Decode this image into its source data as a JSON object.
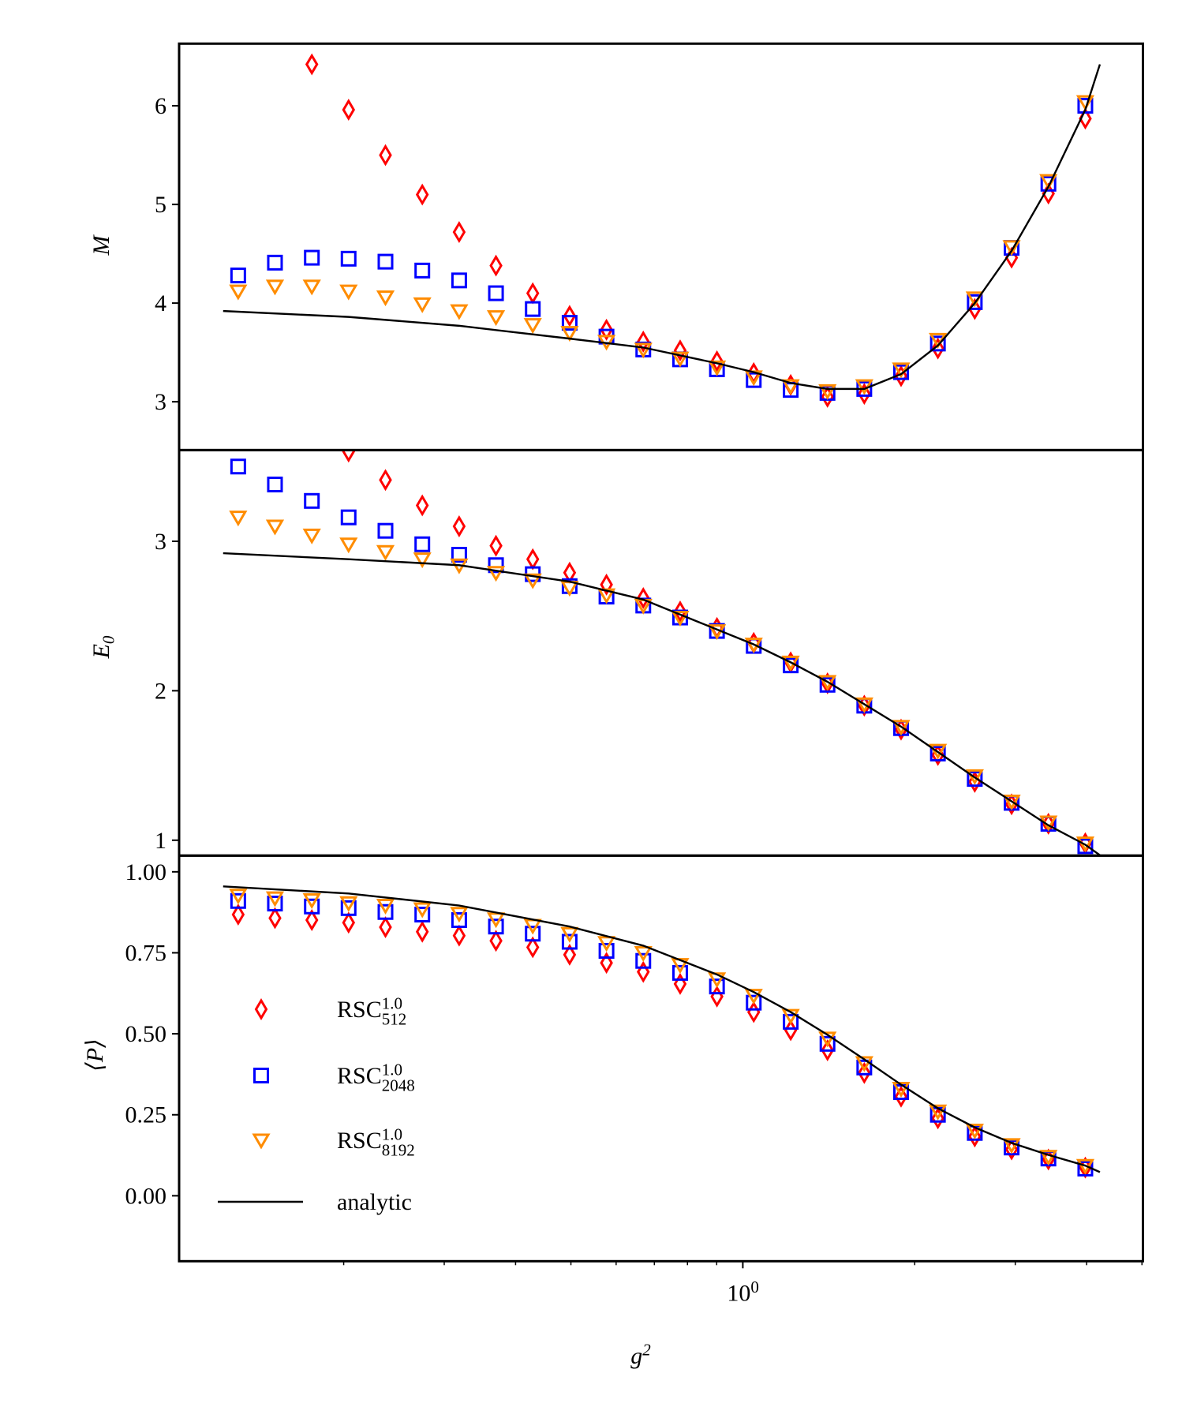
{
  "chart_data": [
    {
      "type": "scatter",
      "xscale": "log",
      "xlim": [
        0.103,
        5.02
      ],
      "ylim": [
        2.51,
        6.63
      ],
      "yticks": [
        3,
        4,
        5,
        6
      ],
      "ylabel": "M",
      "x": [
        0.1307,
        0.1516,
        0.1759,
        0.204,
        0.2367,
        0.2746,
        0.3186,
        0.3696,
        0.4287,
        0.4974,
        0.5771,
        0.6694,
        0.7767,
        0.901,
        1.045,
        1.213,
        1.407,
        1.632,
        1.893,
        2.196,
        2.548,
        2.956,
        3.429,
        3.979
      ],
      "series": [
        {
          "color": "#ff0000",
          "marker": "diamond",
          "values": [
            null,
            null,
            6.42,
            5.96,
            5.5,
            5.1,
            4.72,
            4.38,
            4.1,
            3.87,
            3.73,
            3.61,
            3.52,
            3.41,
            3.29,
            3.17,
            3.05,
            3.08,
            3.26,
            3.54,
            3.94,
            4.46,
            5.11,
            5.87
          ]
        },
        {
          "color": "#0000ff",
          "marker": "square",
          "values": [
            4.28,
            4.41,
            4.46,
            4.45,
            4.42,
            4.33,
            4.23,
            4.1,
            3.94,
            3.8,
            3.66,
            3.53,
            3.43,
            3.33,
            3.22,
            3.12,
            3.09,
            3.13,
            3.3,
            3.59,
            4.01,
            4.56,
            5.21,
            6.0
          ]
        },
        {
          "color": "#ff8c00",
          "marker": "triangle-down",
          "values": [
            4.12,
            4.17,
            4.17,
            4.12,
            4.06,
            3.99,
            3.92,
            3.86,
            3.78,
            3.7,
            3.61,
            3.53,
            3.44,
            3.35,
            3.25,
            3.16,
            3.11,
            3.16,
            3.33,
            3.63,
            4.05,
            4.57,
            5.24,
            6.04
          ]
        },
        {
          "type": "line",
          "color": "#000000",
          "x": [
            0.123,
            0.204,
            0.3186,
            0.4974,
            0.6694,
            0.901,
            1.045,
            1.213,
            1.407,
            1.632,
            1.893,
            2.196,
            2.548,
            2.956,
            3.429,
            3.979,
            4.22
          ],
          "values": [
            3.92,
            3.86,
            3.77,
            3.64,
            3.55,
            3.39,
            3.3,
            3.19,
            3.13,
            3.13,
            3.28,
            3.57,
            4.0,
            4.53,
            5.18,
            5.96,
            6.42
          ]
        }
      ]
    },
    {
      "type": "scatter",
      "xscale": "log",
      "xlim": [
        0.103,
        5.02
      ],
      "ylim": [
        0.897,
        3.61
      ],
      "yticks": [
        1,
        2,
        3
      ],
      "ylabel": {
        "base": "E",
        "sub": "0"
      },
      "x": [
        0.1307,
        0.1516,
        0.1759,
        0.204,
        0.2367,
        0.2746,
        0.3186,
        0.3696,
        0.4287,
        0.4974,
        0.5771,
        0.6694,
        0.7767,
        0.901,
        1.045,
        1.213,
        1.407,
        1.632,
        1.893,
        2.196,
        2.548,
        2.956,
        3.429,
        3.979
      ],
      "series": [
        {
          "color": "#ff0000",
          "marker": "diamond",
          "values": [
            null,
            null,
            null,
            3.6,
            3.41,
            3.24,
            3.1,
            2.97,
            2.88,
            2.79,
            2.71,
            2.62,
            2.53,
            2.42,
            2.32,
            2.19,
            2.05,
            1.9,
            1.74,
            1.57,
            1.39,
            1.24,
            1.11,
            0.98
          ]
        },
        {
          "color": "#0000ff",
          "marker": "square",
          "values": [
            3.5,
            3.38,
            3.27,
            3.16,
            3.07,
            2.98,
            2.91,
            2.84,
            2.78,
            2.7,
            2.63,
            2.57,
            2.49,
            2.4,
            2.3,
            2.17,
            2.04,
            1.9,
            1.75,
            1.58,
            1.41,
            1.25,
            1.11,
            0.96
          ]
        },
        {
          "color": "#ff8c00",
          "marker": "triangle-down",
          "values": [
            3.16,
            3.1,
            3.04,
            2.98,
            2.93,
            2.88,
            2.84,
            2.79,
            2.74,
            2.69,
            2.64,
            2.57,
            2.49,
            2.4,
            2.31,
            2.19,
            2.06,
            1.91,
            1.76,
            1.6,
            1.43,
            1.26,
            1.12,
            0.98
          ]
        },
        {
          "type": "line",
          "color": "#000000",
          "x": [
            0.123,
            0.204,
            0.3186,
            0.4974,
            0.6694,
            0.901,
            1.045,
            1.213,
            1.407,
            1.632,
            1.893,
            2.196,
            2.548,
            2.956,
            3.429,
            3.979,
            4.22
          ],
          "values": [
            2.92,
            2.88,
            2.84,
            2.73,
            2.61,
            2.41,
            2.31,
            2.19,
            2.06,
            1.91,
            1.76,
            1.59,
            1.42,
            1.26,
            1.1,
            0.97,
            0.9
          ]
        }
      ]
    },
    {
      "type": "scatter",
      "xscale": "log",
      "xlim": [
        0.103,
        5.02
      ],
      "ylim": [
        -0.202,
        1.05
      ],
      "yticks": [
        {
          "value": 0,
          "label": "0.00"
        },
        {
          "value": 0.25,
          "label": "0.25"
        },
        {
          "value": 0.5,
          "label": "0.50"
        },
        {
          "value": 0.75,
          "label": "0.75"
        },
        {
          "value": 1,
          "label": "1.00"
        }
      ],
      "ylabel": "⟨P⟩",
      "xlabel": {
        "base": "g",
        "sup": "2"
      },
      "xticks": [
        {
          "value": 1,
          "label": {
            "base": "10",
            "sup": "0"
          }
        }
      ],
      "xminorticks": [
        0.2,
        0.3,
        0.4,
        0.5,
        0.6,
        0.7,
        0.8,
        0.9,
        2,
        3,
        4,
        5
      ],
      "legend": "lower left",
      "x": [
        0.1307,
        0.1516,
        0.1759,
        0.204,
        0.2367,
        0.2746,
        0.3186,
        0.3696,
        0.4287,
        0.4974,
        0.5771,
        0.6694,
        0.7767,
        0.901,
        1.045,
        1.213,
        1.407,
        1.632,
        1.893,
        2.196,
        2.548,
        2.956,
        3.429,
        3.979
      ],
      "series": [
        {
          "name": {
            "base": "RSC",
            "sup": "1.0",
            "sub": "512"
          },
          "color": "#ff0000",
          "marker": "diamond",
          "values": [
            0.868,
            0.857,
            0.851,
            0.843,
            0.829,
            0.815,
            0.803,
            0.787,
            0.767,
            0.744,
            0.719,
            0.691,
            0.654,
            0.615,
            0.567,
            0.511,
            0.449,
            0.379,
            0.306,
            0.239,
            0.183,
            0.143,
            0.112,
            0.087
          ]
        },
        {
          "name": {
            "base": "RSC",
            "sup": "1.0",
            "sub": "2048"
          },
          "color": "#0000ff",
          "marker": "square",
          "values": [
            0.91,
            0.902,
            0.893,
            0.888,
            0.876,
            0.868,
            0.851,
            0.831,
            0.809,
            0.784,
            0.756,
            0.725,
            0.688,
            0.646,
            0.596,
            0.537,
            0.469,
            0.396,
            0.32,
            0.25,
            0.194,
            0.149,
            0.115,
            0.084
          ]
        },
        {
          "name": {
            "base": "RSC",
            "sup": "1.0",
            "sub": "8192"
          },
          "color": "#ff8c00",
          "marker": "triangle-down",
          "values": [
            0.927,
            0.919,
            0.913,
            0.904,
            0.896,
            0.885,
            0.871,
            0.854,
            0.834,
            0.809,
            0.781,
            0.75,
            0.713,
            0.669,
            0.618,
            0.556,
            0.486,
            0.41,
            0.331,
            0.261,
            0.202,
            0.157,
            0.121,
            0.093
          ]
        },
        {
          "name": "analytic",
          "type": "line",
          "color": "#000000",
          "x": [
            0.123,
            0.204,
            0.3186,
            0.4974,
            0.6694,
            0.901,
            1.045,
            1.213,
            1.407,
            1.632,
            1.893,
            2.196,
            2.548,
            2.956,
            3.429,
            3.979,
            4.22
          ],
          "values": [
            0.955,
            0.933,
            0.896,
            0.831,
            0.772,
            0.683,
            0.629,
            0.567,
            0.497,
            0.421,
            0.343,
            0.27,
            0.211,
            0.163,
            0.126,
            0.093,
            0.073
          ]
        }
      ]
    }
  ]
}
